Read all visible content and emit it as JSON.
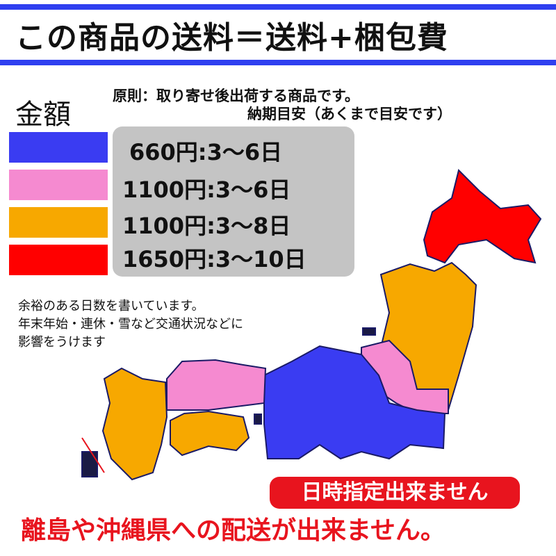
{
  "header": {
    "title": "この商品の送料＝送料+梱包費"
  },
  "legend": {
    "heading": "金額",
    "note_line1": "原則：取り寄せ後出荷する商品です。",
    "note_line2": "納期目安（あくまで目安です）",
    "items": [
      {
        "color": "#3a3cf2",
        "label": "660円:3〜6日"
      },
      {
        "color": "#f58ad0",
        "label": "1100円:3〜6日"
      },
      {
        "color": "#f7a800",
        "label": "1100円:3〜8日"
      },
      {
        "color": "#ff0000",
        "label": "1650円:3〜10日"
      }
    ]
  },
  "notice": {
    "line1": "余裕のある日数を書いています。",
    "line2": "年末年始・連休・雪など交通状況などに",
    "line3": "影響をうけます"
  },
  "map": {
    "regions": [
      {
        "name": "hokkaido",
        "color": "#ff0000"
      },
      {
        "name": "tohoku",
        "color": "#f7a800"
      },
      {
        "name": "kanto-koshinetsu",
        "color": "#3a3cf2"
      },
      {
        "name": "chugoku",
        "color": "#f58ad0"
      },
      {
        "name": "shikoku",
        "color": "#f7a800"
      },
      {
        "name": "kyushu",
        "color": "#f7a800"
      }
    ]
  },
  "warning": {
    "no_date": "日時指定出来ません",
    "no_islands": "離島や沖縄県への配送が出来ません。"
  }
}
